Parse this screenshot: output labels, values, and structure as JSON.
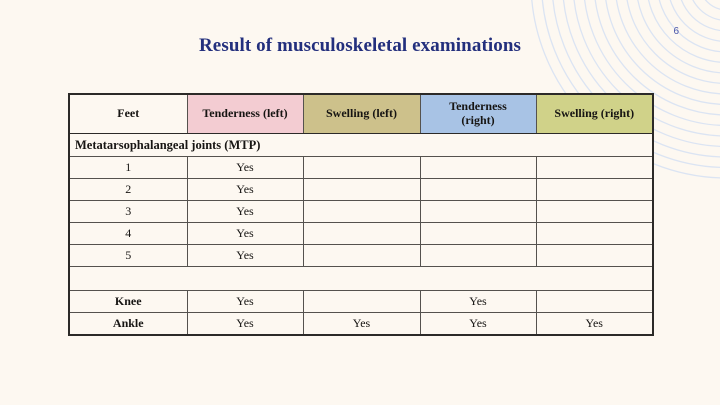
{
  "page": {
    "number": "6",
    "background_color": "#fdf8f1",
    "circle_color": "#dbe4f3"
  },
  "title": {
    "text": "Result of musculoskeletal examinations",
    "color": "#232f7d"
  },
  "table": {
    "columns": [
      {
        "label": "Feet",
        "bg": "#fdf8f1"
      },
      {
        "label": "Tenderness (left)",
        "bg": "#f3ccd2"
      },
      {
        "label": "Swelling (left)",
        "bg": "#cdc18b"
      },
      {
        "label": "Tenderness\n(right)",
        "bg": "#a8c3e5"
      },
      {
        "label": "Swelling (right)",
        "bg": "#d0d289"
      }
    ],
    "section_label": "Metatarsophalangeal joints (MTP)",
    "rows": [
      {
        "label": "1",
        "bold": false,
        "values": [
          "Yes",
          "",
          "",
          ""
        ]
      },
      {
        "label": "2",
        "bold": false,
        "values": [
          "Yes",
          "",
          "",
          ""
        ]
      },
      {
        "label": "3",
        "bold": false,
        "values": [
          "Yes",
          "",
          "",
          ""
        ]
      },
      {
        "label": "4",
        "bold": false,
        "values": [
          "Yes",
          "",
          "",
          ""
        ]
      },
      {
        "label": "5",
        "bold": false,
        "values": [
          "Yes",
          "",
          "",
          ""
        ]
      },
      {
        "spacer": true
      },
      {
        "label": "Knee",
        "bold": true,
        "values": [
          "Yes",
          "",
          "Yes",
          ""
        ]
      },
      {
        "label": "Ankle",
        "bold": true,
        "values": [
          "Yes",
          "Yes",
          "Yes",
          "Yes"
        ]
      }
    ]
  }
}
